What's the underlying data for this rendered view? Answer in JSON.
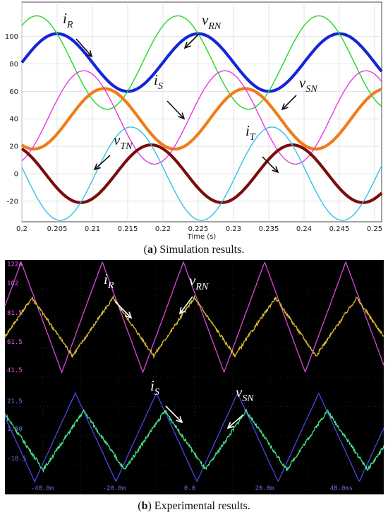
{
  "chart_data": [
    {
      "type": "line",
      "caption": {
        "tag": "a",
        "text": "Simulation results."
      },
      "xlabel": "Time (s)",
      "xlim": [
        0.2,
        0.251
      ],
      "ylim": [
        -35,
        125
      ],
      "x_ticks": [
        "0.2",
        "0.205",
        "0.21",
        "0.215",
        "0.22",
        "0.225",
        "0.23",
        "0.235",
        "0.24",
        "0.245",
        "0.25"
      ],
      "y_ticks": [
        "-20",
        "0",
        "20",
        "40",
        "60",
        "80",
        "100"
      ],
      "period": 0.02,
      "series": [
        {
          "key": "iR",
          "color": "#1426d8",
          "width": 4.2,
          "offset": 81,
          "amplitude": 21,
          "phase_deg": 0,
          "wave": "sine"
        },
        {
          "key": "vRN",
          "color": "#22d822",
          "width": 1.4,
          "offset": 81,
          "amplitude": 34,
          "phase_deg": 52,
          "wave": "sine"
        },
        {
          "key": "iS",
          "color": "#f07c18",
          "width": 4.2,
          "offset": 40,
          "amplitude": 22,
          "phase_deg": 240,
          "wave": "sine"
        },
        {
          "key": "vSN",
          "color": "#e838e0",
          "width": 1.4,
          "offset": 41,
          "amplitude": 34,
          "phase_deg": 292,
          "wave": "sine"
        },
        {
          "key": "iT",
          "color": "#7c0c0c",
          "width": 4.2,
          "offset": 0,
          "amplitude": 21,
          "phase_deg": 120,
          "wave": "sine"
        },
        {
          "key": "vTN",
          "color": "#30c2e4",
          "width": 1.4,
          "offset": 0,
          "amplitude": 34,
          "phase_deg": 172,
          "wave": "sine"
        }
      ],
      "annotations": [
        {
          "base": "i",
          "sub": "R"
        },
        {
          "base": "v",
          "sub": "RN"
        },
        {
          "base": "i",
          "sub": "S"
        },
        {
          "base": "v",
          "sub": "SN"
        },
        {
          "base": "v",
          "sub": "TN"
        },
        {
          "base": "i",
          "sub": "T"
        }
      ]
    },
    {
      "type": "line",
      "caption": {
        "tag": "b",
        "text": "Experimental results."
      },
      "x_ticks": [
        "-40.0m",
        "-20.0m",
        "0.0",
        "20.0m",
        "40.0ms"
      ],
      "xlim": [
        -0.0497,
        0.0488
      ],
      "top_channel": {
        "y_ticks": [
          "122A",
          "102",
          "81.5",
          "61.5",
          "41.5"
        ],
        "ylim": [
          41.5,
          122
        ]
      },
      "bottom_channel": {
        "y_ticks": [
          "21.5",
          "1.50",
          "-18.5"
        ],
        "ylim": [
          -30,
          38
        ]
      },
      "period": 0.0211,
      "series": [
        {
          "key": "vRN",
          "channel": "top",
          "color": "#dc48dc",
          "offset": 82,
          "amplitude": 40,
          "phase_deg": 18,
          "wave": "triangle"
        },
        {
          "key": "iR",
          "channel": "top",
          "color": "#dcbc38",
          "offset": 75,
          "amplitude": 21,
          "phase_deg": -30,
          "wave": "triangle"
        },
        {
          "key": "vSN",
          "channel": "bottom",
          "color": "#4a46e6",
          "offset": 2,
          "amplitude": 30,
          "phase_deg": 138,
          "wave": "triangle"
        },
        {
          "key": "iS",
          "channel": "bottom",
          "color": "#48e48e",
          "offset": 0,
          "amplitude": 20,
          "phase_deg": 100,
          "wave": "triangle"
        }
      ],
      "annotations": [
        {
          "base": "i",
          "sub": "R"
        },
        {
          "base": "v",
          "sub": "RN"
        },
        {
          "base": "i",
          "sub": "S"
        },
        {
          "base": "v",
          "sub": "SN"
        }
      ]
    }
  ]
}
